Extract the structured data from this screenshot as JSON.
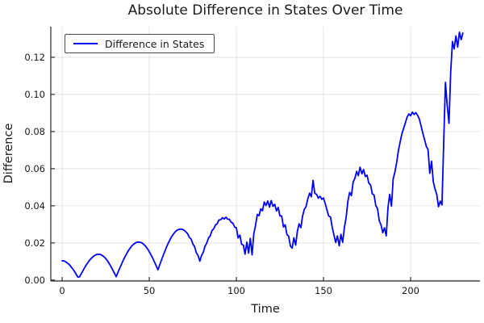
{
  "chart_data": {
    "type": "line",
    "title": "Absolute Difference in States Over Time",
    "xlabel": "Time",
    "ylabel": "Difference",
    "grid": true,
    "legend_position": "top-left",
    "background_color": "#ffffff",
    "grid_color": "rgba(0,0,0,0.1)",
    "axis_color": "#2a2a2a",
    "x_ticks": [
      0,
      50,
      100,
      150,
      200
    ],
    "y_ticks": [
      0,
      0.02,
      0.04,
      0.06,
      0.08,
      0.1,
      0.12
    ],
    "y_tick_labels": [
      "0.00",
      "0.02",
      "0.04",
      "0.06",
      "0.08",
      "0.10",
      "0.12"
    ],
    "xlim": [
      -6.5,
      239.8
    ],
    "ylim": [
      -0.0005,
      0.1365
    ],
    "series": [
      {
        "name": "Difference in States",
        "color": "#0000ff",
        "x": {
          "start": 0,
          "step": 1,
          "count": 231
        },
        "y": [
          0.0104,
          0.0103,
          0.0099,
          0.0092,
          0.0084,
          0.0073,
          0.0061,
          0.0047,
          0.0032,
          0.0016,
          0.0017,
          0.0035,
          0.0052,
          0.0068,
          0.0084,
          0.0097,
          0.011,
          0.012,
          0.0128,
          0.0134,
          0.0138,
          0.0139,
          0.0138,
          0.0133,
          0.0126,
          0.0116,
          0.0104,
          0.0089,
          0.0073,
          0.0055,
          0.0037,
          0.0018,
          0.0041,
          0.0063,
          0.0084,
          0.0105,
          0.0124,
          0.0142,
          0.0158,
          0.0172,
          0.0184,
          0.0193,
          0.02,
          0.0204,
          0.0205,
          0.0203,
          0.0199,
          0.0191,
          0.0181,
          0.0168,
          0.0153,
          0.0136,
          0.0117,
          0.0097,
          0.0076,
          0.0055,
          0.0082,
          0.0108,
          0.0133,
          0.0157,
          0.018,
          0.0201,
          0.022,
          0.0236,
          0.025,
          0.0261,
          0.0269,
          0.0273,
          0.0275,
          0.0273,
          0.0268,
          0.026,
          0.025,
          0.023,
          0.0221,
          0.0195,
          0.018,
          0.0147,
          0.0133,
          0.0102,
          0.0132,
          0.015,
          0.0183,
          0.0199,
          0.0227,
          0.0238,
          0.0267,
          0.0277,
          0.0297,
          0.0304,
          0.0324,
          0.0325,
          0.0336,
          0.0329,
          0.0339,
          0.0328,
          0.0327,
          0.0311,
          0.0307,
          0.0285,
          0.0282,
          0.0227,
          0.0242,
          0.0193,
          0.0188,
          0.014,
          0.0204,
          0.0146,
          0.0225,
          0.0136,
          0.0248,
          0.0295,
          0.0354,
          0.0347,
          0.0384,
          0.0374,
          0.042,
          0.0401,
          0.0426,
          0.0393,
          0.0428,
          0.0397,
          0.0408,
          0.0372,
          0.0391,
          0.0346,
          0.0345,
          0.0286,
          0.0298,
          0.0245,
          0.0237,
          0.0184,
          0.0172,
          0.0228,
          0.0188,
          0.0262,
          0.0303,
          0.0282,
          0.0345,
          0.0382,
          0.0395,
          0.0438,
          0.0468,
          0.0449,
          0.0537,
          0.0467,
          0.0462,
          0.0441,
          0.0452,
          0.0435,
          0.0442,
          0.0412,
          0.0376,
          0.0345,
          0.034,
          0.0285,
          0.0243,
          0.0202,
          0.0238,
          0.0185,
          0.0247,
          0.0203,
          0.0285,
          0.0338,
          0.0425,
          0.0472,
          0.0455,
          0.0528,
          0.0548,
          0.0585,
          0.0562,
          0.0608,
          0.0572,
          0.0595,
          0.0558,
          0.0565,
          0.0522,
          0.0512,
          0.0465,
          0.0458,
          0.0402,
          0.0385,
          0.0318,
          0.0298,
          0.0255,
          0.0282,
          0.0238,
          0.0392,
          0.0462,
          0.0398,
          0.0545,
          0.0582,
          0.0635,
          0.0698,
          0.0745,
          0.0788,
          0.0818,
          0.0848,
          0.0878,
          0.0895,
          0.0885,
          0.0905,
          0.0892,
          0.0902,
          0.0888,
          0.0868,
          0.083,
          0.079,
          0.0757,
          0.072,
          0.0704,
          0.0575,
          0.064,
          0.053,
          0.049,
          0.0462,
          0.0395,
          0.0425,
          0.0405,
          0.075,
          0.1065,
          0.094,
          0.0845,
          0.112,
          0.1285,
          0.1245,
          0.1315,
          0.1255,
          0.1335,
          0.1295,
          0.133
        ]
      }
    ]
  }
}
